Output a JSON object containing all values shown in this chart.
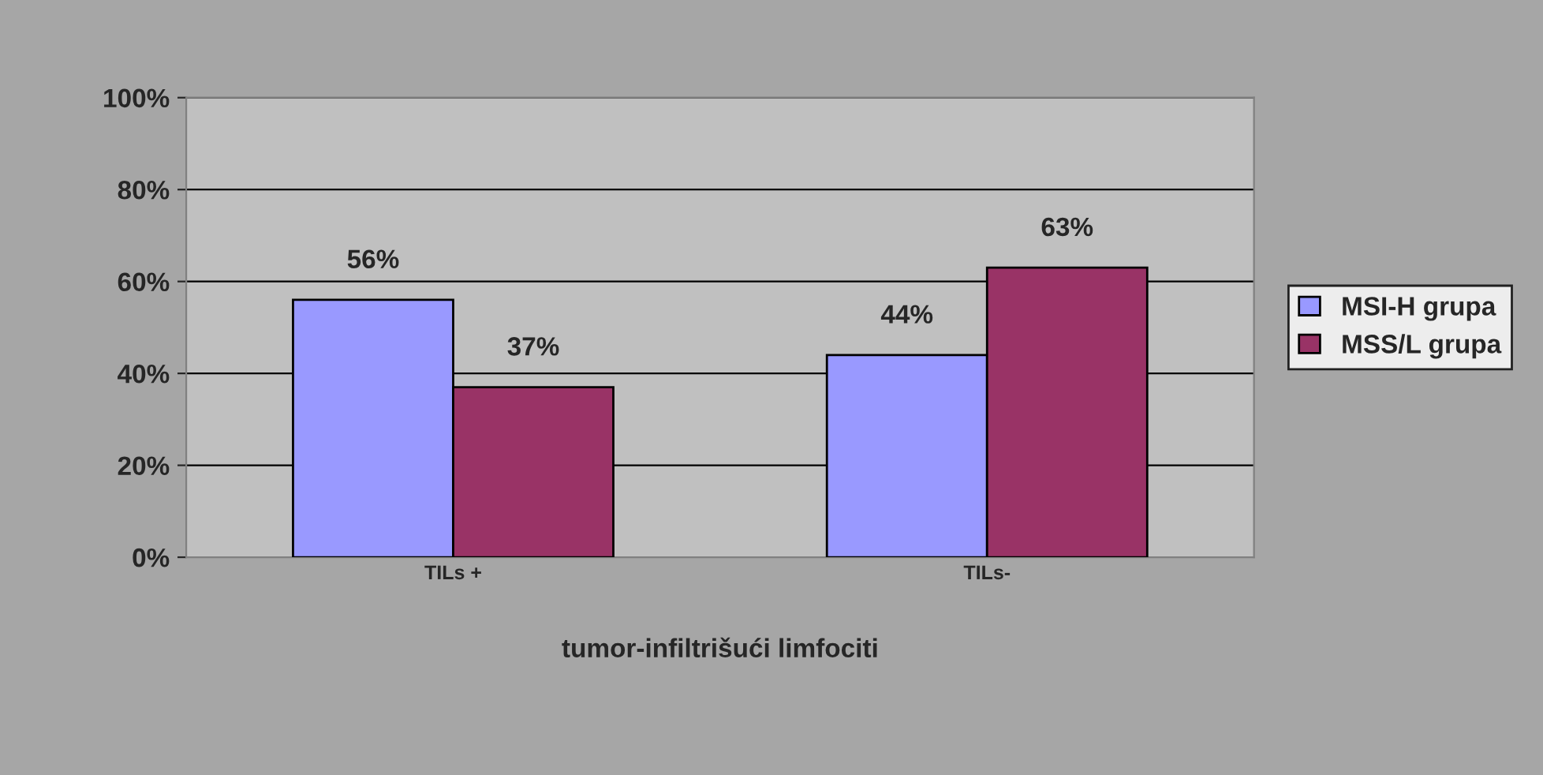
{
  "chart_data": {
    "type": "bar",
    "xlabel": "tumor-infiltrišući limfociti",
    "categories": [
      "TILs +",
      "TILs-"
    ],
    "series": [
      {
        "name": "MSI-H grupa",
        "color": "#9999ff",
        "values": [
          56,
          44
        ]
      },
      {
        "name": "MSS/L grupa",
        "color": "#993366",
        "values": [
          37,
          63
        ]
      }
    ],
    "ylim": [
      0,
      100
    ],
    "yticks": [
      {
        "value": 0,
        "label": "0%"
      },
      {
        "value": 20,
        "label": "20%"
      },
      {
        "value": 40,
        "label": "40%"
      },
      {
        "value": 60,
        "label": "60%"
      },
      {
        "value": 80,
        "label": "80%"
      },
      {
        "value": 100,
        "label": "100%"
      }
    ],
    "value_labels": [
      [
        "56%",
        "44%"
      ],
      [
        "37%",
        "63%"
      ]
    ],
    "grid": "y",
    "legend": "right"
  }
}
